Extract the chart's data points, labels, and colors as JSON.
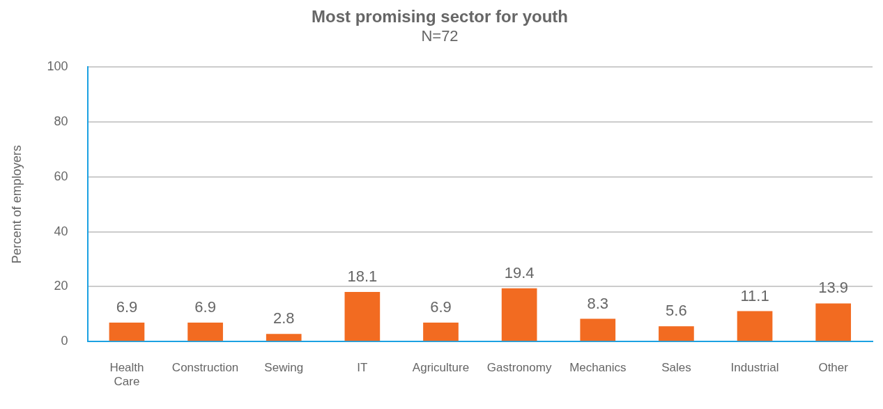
{
  "chart_data": {
    "type": "bar",
    "title": "Most promising sector for youth",
    "subtitle": "N=72",
    "ylabel": "Percent of employers",
    "categories": [
      "Health Care",
      "Construction",
      "Sewing",
      "IT",
      "Agriculture",
      "Gastronomy",
      "Mechanics",
      "Sales",
      "Industrial",
      "Other"
    ],
    "values": [
      6.9,
      6.9,
      2.8,
      18.1,
      6.9,
      19.4,
      8.3,
      5.6,
      11.1,
      13.9
    ],
    "color": "#f26b21",
    "ylim": [
      0,
      100
    ],
    "yticks": [
      0,
      20,
      40,
      60,
      80,
      100
    ],
    "grid": "y",
    "data_labels": true
  }
}
